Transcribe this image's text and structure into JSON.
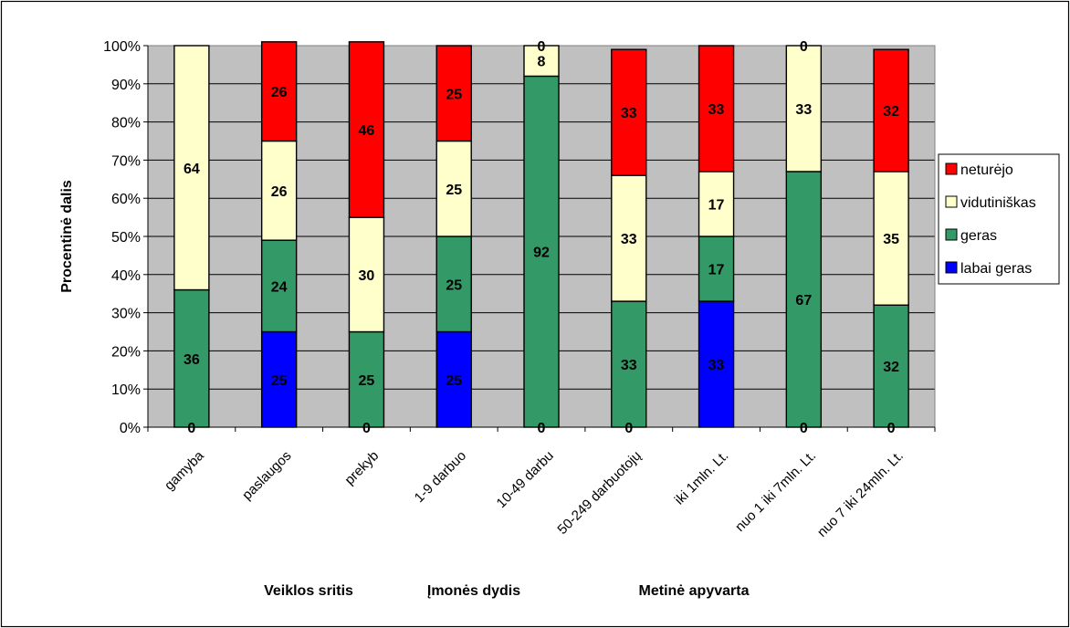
{
  "chart_data": {
    "type": "bar",
    "stacked": "percent",
    "ylabel": "Procentinė dalis",
    "ylim": [
      0,
      100
    ],
    "yticks": [
      "0%",
      "10%",
      "20%",
      "30%",
      "40%",
      "50%",
      "60%",
      "70%",
      "80%",
      "90%",
      "100%"
    ],
    "categories": [
      "gamyba",
      "paslaugos",
      "prekyb",
      "1-9 darbuo",
      "10-49 darbu",
      "50-249 darbuotojų",
      "iki 1mln. Lt.",
      "nuo 1 iki 7mln. Lt.",
      "nuo 7 iki 24mln. Lt."
    ],
    "groups": [
      "Veiklos sritis",
      "Įmonės dydis",
      "Metinė apyvarta"
    ],
    "series": [
      {
        "name": "labai geras",
        "color": "#0000FF",
        "values": [
          0,
          25,
          0,
          25,
          0,
          0,
          33,
          0,
          0
        ],
        "labels": [
          "0",
          "25",
          "0",
          "25",
          "0",
          "0",
          "33",
          "0",
          "0"
        ]
      },
      {
        "name": "geras",
        "color": "#339966",
        "values": [
          36,
          24,
          25,
          25,
          92,
          33,
          17,
          67,
          32
        ],
        "labels": [
          "36",
          "24",
          "25",
          "25",
          "92",
          "33",
          "17",
          "67",
          "32"
        ]
      },
      {
        "name": "vidutiniškas",
        "color": "#FFFFCC",
        "values": [
          64,
          26,
          30,
          25,
          8,
          33,
          17,
          33,
          35
        ],
        "labels": [
          "64",
          "26",
          "30",
          "25",
          "8",
          "33",
          "17",
          "33",
          "35"
        ]
      },
      {
        "name": "neturėjo",
        "color": "#FF0000",
        "values": [
          0,
          26,
          46,
          25,
          0,
          33,
          33,
          0,
          32
        ],
        "labels": [
          "",
          "26",
          "46",
          "25",
          "0",
          "33",
          "33",
          "0",
          "32"
        ]
      }
    ],
    "legend_order": [
      "neturėjo",
      "vidutiniškas",
      "geras",
      "labai geras"
    ],
    "legend_position": "right",
    "plot_background": "#C0C0C0",
    "grid": true
  }
}
